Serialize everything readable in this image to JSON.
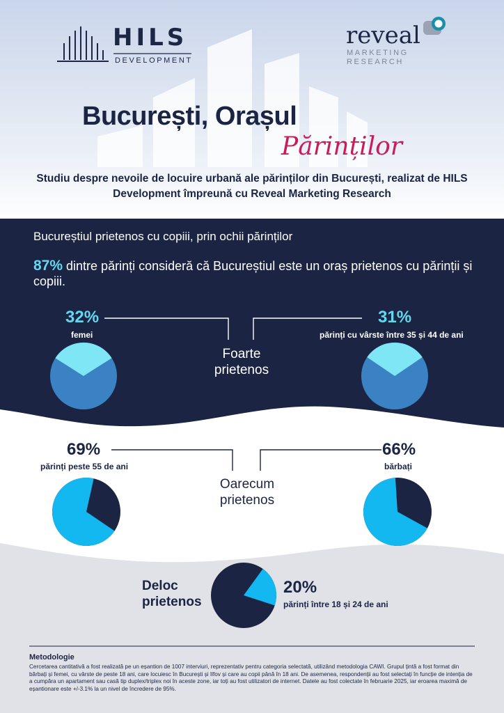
{
  "brand": {
    "hils_name": "HILS",
    "hils_sub": "DEVELOPMENT",
    "reveal_name": "reveal",
    "reveal_sub_1": "MARKETING",
    "reveal_sub_2": "RESEARCH"
  },
  "title": {
    "main": "București, Orașul",
    "script": "Părinților"
  },
  "subtitle": "Studiu despre nevoile de locuire urbană ale părinților din București, realizat de HILS Development împreună cu Reveal Marketing Research",
  "section": {
    "heading": "Bucureștiul prietenos cu copiii, prin ochii părinților",
    "headline_pct": "87%",
    "headline_rest": " dintre părinți consideră că Bucureștiul este un oraș prietenos cu părinții și copiii."
  },
  "categories": {
    "very_friendly": "Foarte prietenos",
    "somewhat_friendly": "Oarecum prietenos",
    "not_friendly": "Deloc prietenos"
  },
  "colors": {
    "navy": "#1b2443",
    "light_cyan": "#7ee6f5",
    "mid_blue": "#3b82c4",
    "bright_cyan": "#12b8ef",
    "pink": "#c71d5c",
    "grey_bg": "#e1e2e7"
  },
  "chart_data": [
    {
      "type": "pie",
      "group": "femei",
      "pct_label": "32%",
      "value": 32,
      "category": "Foarte prietenos"
    },
    {
      "type": "pie",
      "group": "părinți cu vârste între 35 și 44 de ani",
      "pct_label": "31%",
      "value": 31,
      "category": "Foarte prietenos"
    },
    {
      "type": "pie",
      "group": "părinți peste 55 de ani",
      "pct_label": "69%",
      "value": 69,
      "category": "Oarecum prietenos"
    },
    {
      "type": "pie",
      "group": "bărbați",
      "pct_label": "66%",
      "value": 66,
      "category": "Oarecum prietenos"
    },
    {
      "type": "pie",
      "group": "părinți între 18 și 24 de ani",
      "pct_label": "20%",
      "value": 20,
      "category": "Deloc prietenos"
    }
  ],
  "methodology": {
    "title": "Metodologie",
    "body": "Cercetarea cantitativă a fost realizată pe un eșantion de 1007 interviuri, reprezentativ pentru categoria selectată, utilizând metodologia CAWI. Grupul țintă a fost format din bărbați și femei, cu vârste de peste 18 ani, care locuiesc în București și Ilfov și care au copii până în 18 ani. De asemenea, respondenții au fost selectați în funcție de intenția de a cumpăra un apartament sau casă tip duplex/triplex noi în aceste zone, iar toți au fost utilizatori de internet. Datele au fost colectate în februarie 2025, iar eroarea maximă de eșantionare este +/-3.1% la un nivel de încredere de 95%."
  }
}
